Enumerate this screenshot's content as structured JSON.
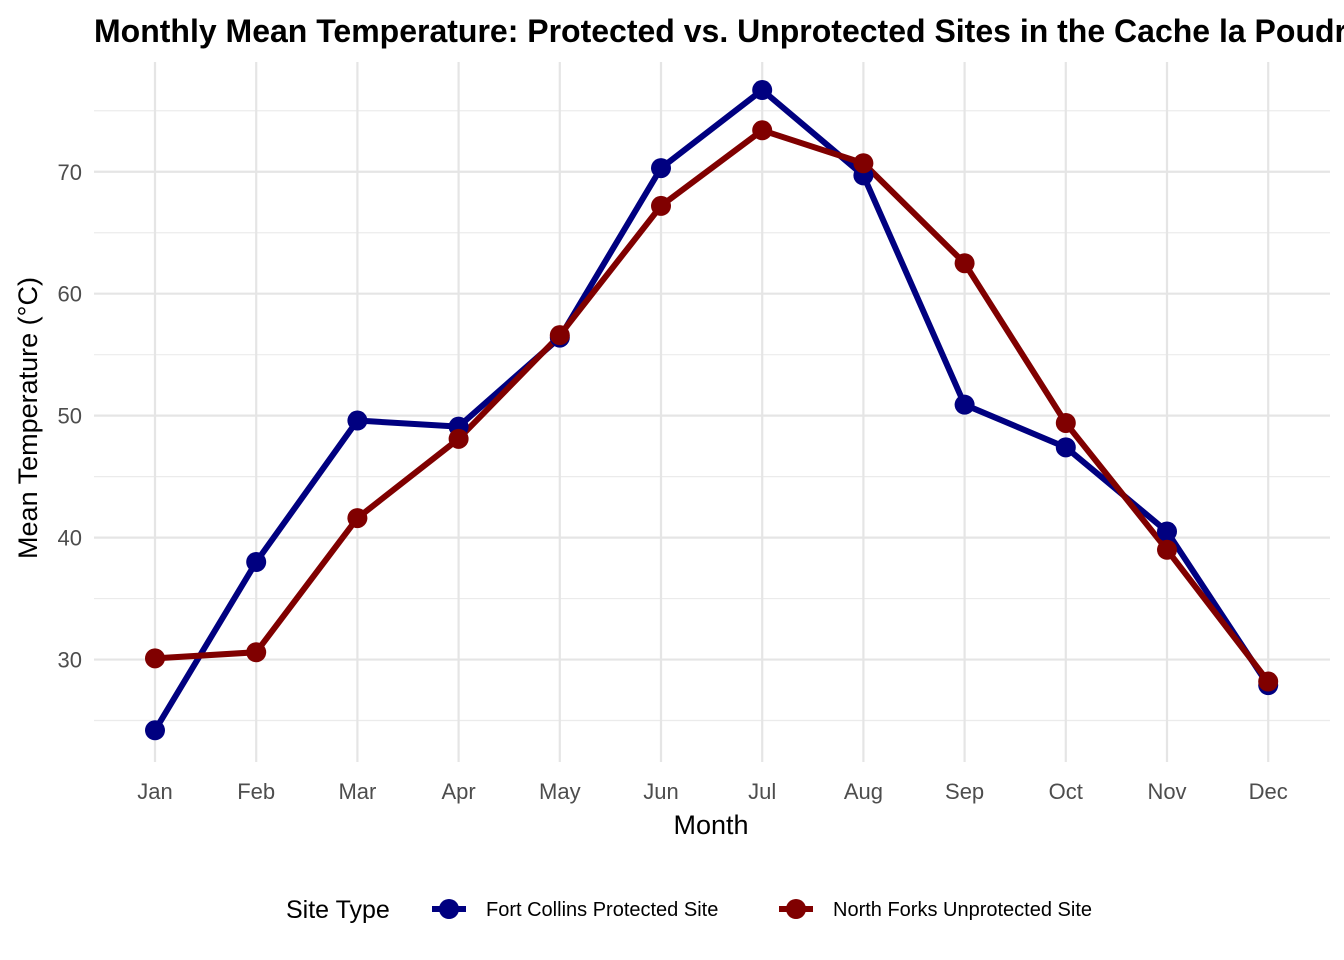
{
  "chart_data": {
    "type": "line",
    "title": "Monthly Mean Temperature: Protected vs. Unprotected Sites in the Cache la Poudre River",
    "xlabel": "Month",
    "ylabel": "Mean Temperature (°C)",
    "categories": [
      "Jan",
      "Feb",
      "Mar",
      "Apr",
      "May",
      "Jun",
      "Jul",
      "Aug",
      "Sep",
      "Oct",
      "Nov",
      "Dec"
    ],
    "ylim": [
      21.6,
      79.0
    ],
    "yticks": [
      30,
      40,
      50,
      60,
      70
    ],
    "grid": true,
    "legend": {
      "title": "Site Type",
      "position": "bottom"
    },
    "series": [
      {
        "name": "Fort Collins Protected Site",
        "color": "#000080",
        "values": [
          24.2,
          38.0,
          49.6,
          49.1,
          56.4,
          70.3,
          76.7,
          69.7,
          50.9,
          47.4,
          40.5,
          27.9
        ]
      },
      {
        "name": "North Forks Unprotected Site",
        "color": "#800000",
        "values": [
          30.1,
          30.6,
          41.6,
          48.1,
          56.6,
          67.2,
          73.4,
          70.7,
          62.5,
          49.4,
          39.0,
          28.2
        ]
      }
    ]
  }
}
